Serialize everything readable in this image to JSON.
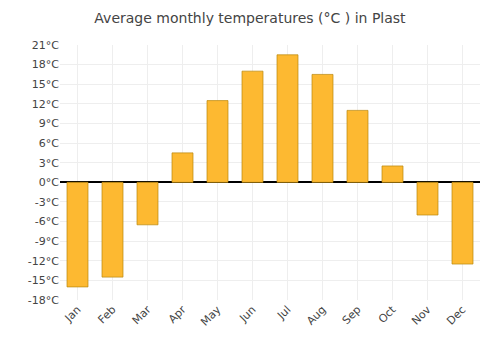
{
  "chart_data": {
    "type": "bar",
    "title": "Average monthly temperatures (°C ) in Plast",
    "categories": [
      "Jan",
      "Feb",
      "Mar",
      "Apr",
      "May",
      "Jun",
      "Jul",
      "Aug",
      "Sep",
      "Oct",
      "Nov",
      "Dec"
    ],
    "values": [
      -16,
      -14.5,
      -6.5,
      4.5,
      12.5,
      17,
      19.5,
      16.5,
      11,
      2.5,
      -5,
      -12.5
    ],
    "color": "#FDB931",
    "ylim": [
      -18,
      21
    ],
    "yticks": [
      {
        "value": -18,
        "label": "-18°C"
      },
      {
        "value": -15,
        "label": "-15°C"
      },
      {
        "value": -12,
        "label": "-12°C"
      },
      {
        "value": -9,
        "label": "-9°C"
      },
      {
        "value": -6,
        "label": "-6°C"
      },
      {
        "value": -3,
        "label": "-3°C"
      },
      {
        "value": 0,
        "label": "0°C"
      },
      {
        "value": 3,
        "label": "3°C"
      },
      {
        "value": 6,
        "label": "6°C"
      },
      {
        "value": 9,
        "label": "9°C"
      },
      {
        "value": 12,
        "label": "12°C"
      },
      {
        "value": 15,
        "label": "15°C"
      },
      {
        "value": 18,
        "label": "18°C"
      },
      {
        "value": 21,
        "label": "21°C"
      }
    ],
    "grid": true
  }
}
